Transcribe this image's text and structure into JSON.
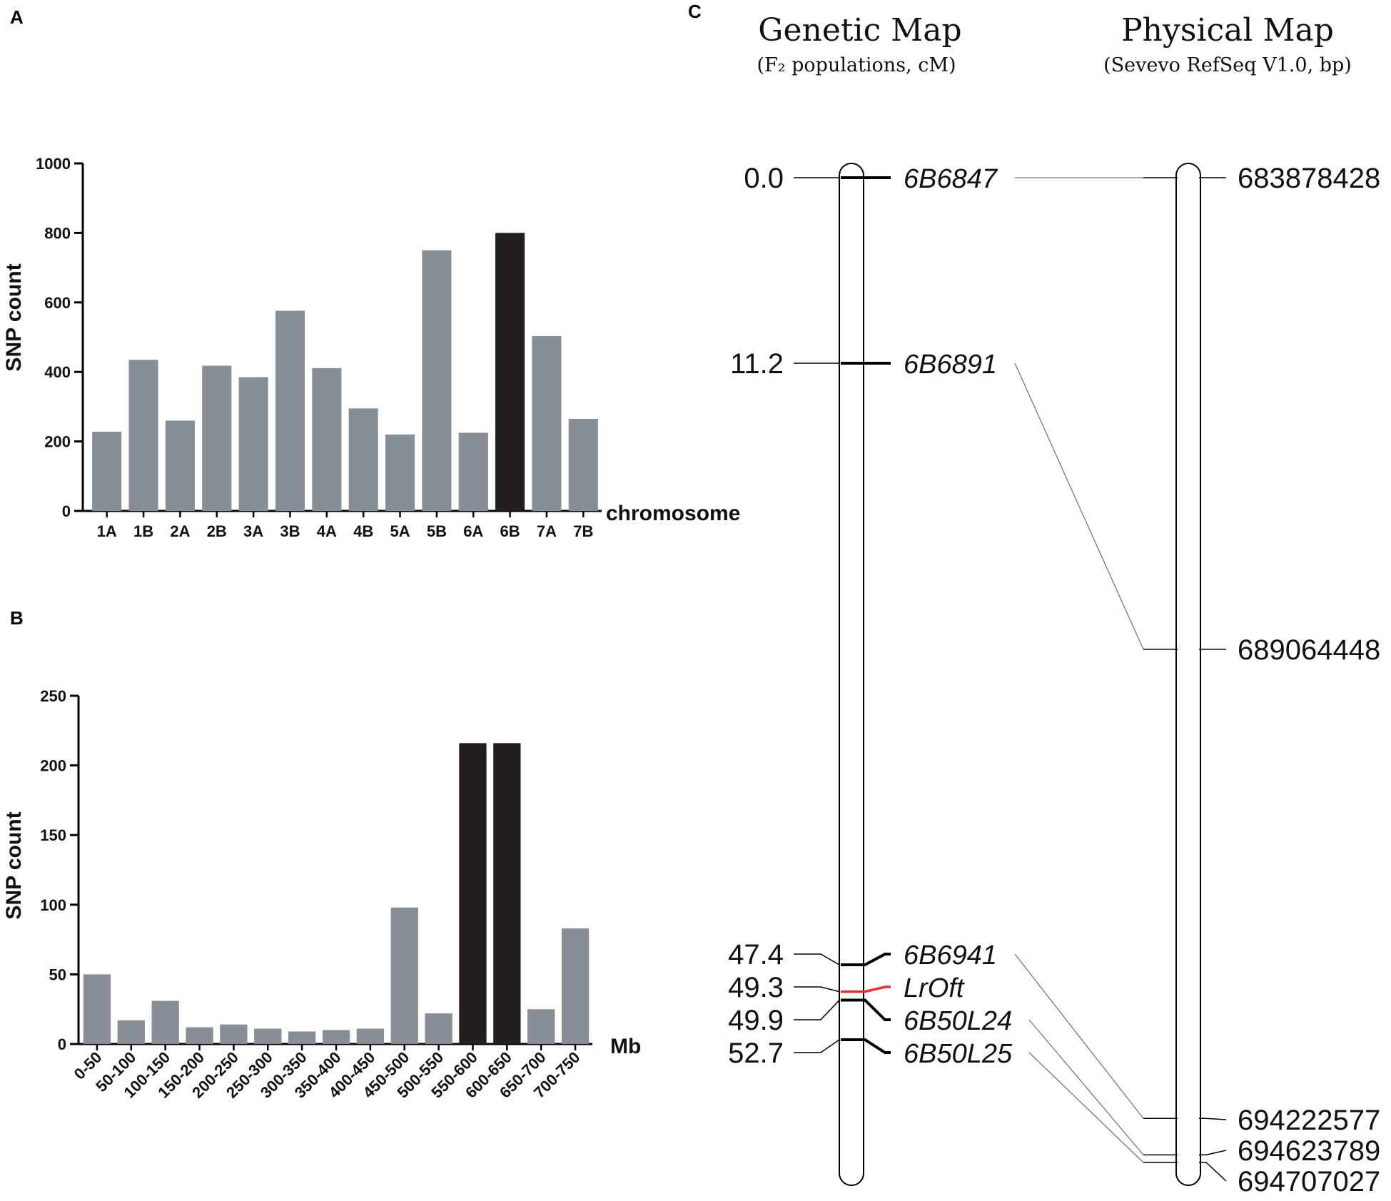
{
  "panels": {
    "a": "A",
    "b": "B",
    "c": "C"
  },
  "chart_data": [
    {
      "id": "A",
      "type": "bar",
      "title": "",
      "xlabel": "chromosome",
      "ylabel": "SNP  count",
      "ylim": [
        0,
        1000
      ],
      "yticks": [
        0,
        200,
        400,
        600,
        800,
        1000
      ],
      "categories": [
        "1A",
        "1B",
        "2A",
        "2B",
        "3A",
        "3B",
        "4A",
        "4B",
        "5A",
        "5B",
        "6A",
        "6B",
        "7A",
        "7B"
      ],
      "values": [
        228,
        435,
        260,
        418,
        385,
        576,
        411,
        295,
        220,
        750,
        225,
        800,
        503,
        265
      ],
      "highlight": [
        "6B"
      ],
      "colors": {
        "bar": "#878e96",
        "highlight": "#231f20"
      }
    },
    {
      "id": "B",
      "type": "bar",
      "title": "",
      "xlabel": "Mb",
      "ylabel": "SNP  count",
      "ylim": [
        0,
        250
      ],
      "yticks": [
        0,
        50,
        100,
        150,
        200,
        250
      ],
      "categories": [
        "0-50",
        "50-100",
        "100-150",
        "150-200",
        "200-250",
        "250-300",
        "300-350",
        "350-400",
        "400-450",
        "450-500",
        "500-550",
        "550-600",
        "600-650",
        "650-700",
        "700-750"
      ],
      "values": [
        50,
        17,
        31,
        12,
        14,
        11,
        9,
        10,
        11,
        98,
        22,
        216,
        216,
        25,
        83
      ],
      "highlight": [
        "550-600",
        "600-650"
      ],
      "colors": {
        "bar": "#878e96",
        "highlight": "#231f20"
      }
    }
  ],
  "map": {
    "genetic": {
      "title": "Genetic Map",
      "subtitle": "(F₂ populations, cM)",
      "markers": [
        {
          "pos": "0.0",
          "name": "6B6847",
          "cm": 0.0
        },
        {
          "pos": "11.2",
          "name": "6B6891",
          "cm": 11.2
        },
        {
          "pos": "47.4",
          "name": "6B6941",
          "cm": 47.4
        },
        {
          "pos": "49.3",
          "name": "LrOft",
          "cm": 49.3,
          "highlight": true
        },
        {
          "pos": "49.9",
          "name": "6B50L24",
          "cm": 49.9
        },
        {
          "pos": "52.7",
          "name": "6B50L25",
          "cm": 52.7
        }
      ]
    },
    "physical": {
      "title": "Physical Map",
      "subtitle": "(Sevevo RefSeq V1.0, bp)",
      "markers": [
        {
          "pos": "683878428",
          "bp": 683878428
        },
        {
          "pos": "689064448",
          "bp": 689064448
        },
        {
          "pos": "694222577",
          "bp": 694222577
        },
        {
          "pos": "694623789",
          "bp": 694623789
        },
        {
          "pos": "694707027",
          "bp": 694707027
        }
      ]
    },
    "links": [
      [
        0,
        0
      ],
      [
        1,
        1
      ],
      [
        2,
        2
      ],
      [
        4,
        3
      ],
      [
        5,
        4
      ]
    ],
    "colors": {
      "highlight": "#e8312f",
      "line": "#000000",
      "link": "#777777"
    }
  }
}
